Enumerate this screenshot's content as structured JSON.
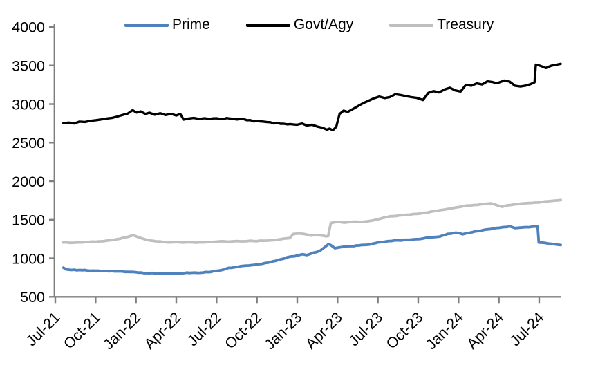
{
  "chart_data": {
    "type": "line",
    "title": "",
    "grid": false,
    "axis_color": "#7F7F7F",
    "text_color": "#000000",
    "x_axis": {
      "tick_labels": [
        "Jul-21",
        "Oct-21",
        "Jan-22",
        "Apr-22",
        "Jul-22",
        "Oct-22",
        "Jan-23",
        "Apr-23",
        "Jul-23",
        "Oct-23",
        "Jan-24",
        "Apr-24",
        "Jul-24"
      ],
      "tick_interval_months": 3,
      "label_rotation_deg": -45
    },
    "y_axis": {
      "min": 500,
      "max": 4000,
      "tick_step": 500,
      "tick_labels": [
        "500",
        "1000",
        "1500",
        "2000",
        "2500",
        "3000",
        "3500",
        "4000"
      ]
    },
    "legend": {
      "position": "top"
    },
    "series": [
      {
        "name": "Prime",
        "color": "#4F81BD",
        "width": 3.8,
        "jitter": 5,
        "points": [
          [
            0.6,
            878
          ],
          [
            0.8,
            856
          ],
          [
            1.2,
            848
          ],
          [
            2,
            845
          ],
          [
            2.8,
            840
          ],
          [
            3.6,
            836
          ],
          [
            4.4,
            830
          ],
          [
            5.2,
            824
          ],
          [
            6,
            818
          ],
          [
            6.8,
            808
          ],
          [
            7.6,
            804
          ],
          [
            8.4,
            803
          ],
          [
            9.2,
            806
          ],
          [
            10,
            810
          ],
          [
            10.8,
            812
          ],
          [
            11.6,
            824
          ],
          [
            12.2,
            842
          ],
          [
            12.9,
            876
          ],
          [
            13.6,
            890
          ],
          [
            14.4,
            906
          ],
          [
            15.2,
            925
          ],
          [
            16,
            950
          ],
          [
            16.8,
            988
          ],
          [
            17.4,
            1018
          ],
          [
            18,
            1036
          ],
          [
            18.4,
            1052
          ],
          [
            18.7,
            1042
          ],
          [
            19.2,
            1072
          ],
          [
            19.7,
            1098
          ],
          [
            20.1,
            1152
          ],
          [
            20.35,
            1186
          ],
          [
            20.6,
            1158
          ],
          [
            20.8,
            1130
          ],
          [
            21.1,
            1140
          ],
          [
            21.5,
            1150
          ],
          [
            22,
            1158
          ],
          [
            22.6,
            1166
          ],
          [
            23.2,
            1175
          ],
          [
            23.8,
            1196
          ],
          [
            24.4,
            1212
          ],
          [
            25,
            1224
          ],
          [
            25.6,
            1232
          ],
          [
            26.2,
            1240
          ],
          [
            26.8,
            1248
          ],
          [
            27.4,
            1258
          ],
          [
            28,
            1270
          ],
          [
            28.6,
            1282
          ],
          [
            29.2,
            1318
          ],
          [
            29.8,
            1332
          ],
          [
            30.3,
            1312
          ],
          [
            30.8,
            1330
          ],
          [
            31.4,
            1352
          ],
          [
            32,
            1372
          ],
          [
            32.6,
            1388
          ],
          [
            33.2,
            1400
          ],
          [
            33.8,
            1415
          ],
          [
            34.2,
            1392
          ],
          [
            34.6,
            1398
          ],
          [
            35,
            1404
          ],
          [
            35.5,
            1410
          ],
          [
            35.88,
            1413
          ],
          [
            35.97,
            1205
          ],
          [
            36.4,
            1200
          ],
          [
            36.9,
            1188
          ],
          [
            37.3,
            1178
          ],
          [
            37.6,
            1172
          ]
        ]
      },
      {
        "name": "Govt/Agy",
        "color": "#000000",
        "width": 3.4,
        "jitter": 12,
        "points": [
          [
            0.6,
            2752
          ],
          [
            1,
            2760
          ],
          [
            1.4,
            2748
          ],
          [
            1.8,
            2772
          ],
          [
            2.2,
            2768
          ],
          [
            2.6,
            2782
          ],
          [
            3,
            2790
          ],
          [
            3.4,
            2800
          ],
          [
            3.8,
            2812
          ],
          [
            4.2,
            2820
          ],
          [
            4.6,
            2838
          ],
          [
            5,
            2858
          ],
          [
            5.4,
            2878
          ],
          [
            5.75,
            2920
          ],
          [
            6.05,
            2890
          ],
          [
            6.35,
            2905
          ],
          [
            6.7,
            2872
          ],
          [
            7,
            2888
          ],
          [
            7.4,
            2862
          ],
          [
            7.8,
            2882
          ],
          [
            8.2,
            2858
          ],
          [
            8.6,
            2874
          ],
          [
            9,
            2852
          ],
          [
            9.3,
            2872
          ],
          [
            9.55,
            2798
          ],
          [
            9.9,
            2812
          ],
          [
            10.3,
            2820
          ],
          [
            10.7,
            2806
          ],
          [
            11.1,
            2816
          ],
          [
            11.5,
            2806
          ],
          [
            12,
            2815
          ],
          [
            12.5,
            2805
          ],
          [
            13,
            2812
          ],
          [
            13.5,
            2800
          ],
          [
            14,
            2806
          ],
          [
            14.5,
            2792
          ],
          [
            15,
            2780
          ],
          [
            15.5,
            2772
          ],
          [
            16,
            2764
          ],
          [
            16.5,
            2755
          ],
          [
            17,
            2745
          ],
          [
            17.5,
            2740
          ],
          [
            18,
            2732
          ],
          [
            18.35,
            2748
          ],
          [
            18.7,
            2722
          ],
          [
            19.1,
            2732
          ],
          [
            19.5,
            2708
          ],
          [
            19.9,
            2692
          ],
          [
            20.2,
            2668
          ],
          [
            20.4,
            2682
          ],
          [
            20.65,
            2660
          ],
          [
            20.9,
            2705
          ],
          [
            21.15,
            2872
          ],
          [
            21.45,
            2915
          ],
          [
            21.75,
            2898
          ],
          [
            22.1,
            2932
          ],
          [
            22.5,
            2972
          ],
          [
            22.9,
            3012
          ],
          [
            23.3,
            3042
          ],
          [
            23.7,
            3075
          ],
          [
            24.1,
            3098
          ],
          [
            24.5,
            3078
          ],
          [
            24.9,
            3092
          ],
          [
            25.3,
            3128
          ],
          [
            25.7,
            3118
          ],
          [
            26.1,
            3102
          ],
          [
            26.5,
            3090
          ],
          [
            26.9,
            3080
          ],
          [
            27.35,
            3052
          ],
          [
            27.75,
            3145
          ],
          [
            28.15,
            3168
          ],
          [
            28.55,
            3152
          ],
          [
            28.95,
            3188
          ],
          [
            29.35,
            3212
          ],
          [
            29.75,
            3178
          ],
          [
            30.15,
            3162
          ],
          [
            30.55,
            3250
          ],
          [
            30.95,
            3238
          ],
          [
            31.35,
            3268
          ],
          [
            31.75,
            3255
          ],
          [
            32.15,
            3295
          ],
          [
            32.55,
            3285
          ],
          [
            33,
            3280
          ],
          [
            33.4,
            3305
          ],
          [
            33.8,
            3292
          ],
          [
            34.2,
            3238
          ],
          [
            34.6,
            3228
          ],
          [
            35,
            3240
          ],
          [
            35.35,
            3258
          ],
          [
            35.65,
            3282
          ],
          [
            35.75,
            3512
          ],
          [
            36.1,
            3495
          ],
          [
            36.5,
            3468
          ],
          [
            36.9,
            3498
          ],
          [
            37.2,
            3508
          ],
          [
            37.6,
            3522
          ]
        ]
      },
      {
        "name": "Treasury",
        "color": "#BFBFBF",
        "width": 3.8,
        "jitter": 4,
        "points": [
          [
            0.6,
            1205
          ],
          [
            1.2,
            1200
          ],
          [
            1.8,
            1206
          ],
          [
            2.4,
            1210
          ],
          [
            3,
            1214
          ],
          [
            3.6,
            1222
          ],
          [
            4.2,
            1236
          ],
          [
            4.8,
            1252
          ],
          [
            5.4,
            1278
          ],
          [
            5.8,
            1300
          ],
          [
            6.2,
            1272
          ],
          [
            6.6,
            1250
          ],
          [
            7,
            1232
          ],
          [
            7.5,
            1220
          ],
          [
            8,
            1212
          ],
          [
            8.5,
            1206
          ],
          [
            9,
            1210
          ],
          [
            9.5,
            1204
          ],
          [
            10,
            1208
          ],
          [
            10.5,
            1202
          ],
          [
            11,
            1207
          ],
          [
            11.5,
            1212
          ],
          [
            12,
            1216
          ],
          [
            12.5,
            1221
          ],
          [
            13,
            1217
          ],
          [
            13.5,
            1224
          ],
          [
            14,
            1220
          ],
          [
            14.5,
            1227
          ],
          [
            15,
            1222
          ],
          [
            15.5,
            1228
          ],
          [
            16,
            1233
          ],
          [
            16.5,
            1240
          ],
          [
            17,
            1255
          ],
          [
            17.45,
            1262
          ],
          [
            17.7,
            1315
          ],
          [
            18.1,
            1322
          ],
          [
            18.5,
            1316
          ],
          [
            19,
            1295
          ],
          [
            19.4,
            1302
          ],
          [
            19.8,
            1296
          ],
          [
            20.15,
            1285
          ],
          [
            20.3,
            1288
          ],
          [
            20.5,
            1458
          ],
          [
            20.8,
            1468
          ],
          [
            21.1,
            1472
          ],
          [
            21.5,
            1462
          ],
          [
            21.9,
            1470
          ],
          [
            22.3,
            1476
          ],
          [
            22.7,
            1470
          ],
          [
            23.1,
            1477
          ],
          [
            23.5,
            1486
          ],
          [
            23.9,
            1502
          ],
          [
            24.4,
            1525
          ],
          [
            24.9,
            1545
          ],
          [
            25.4,
            1550
          ],
          [
            25.9,
            1560
          ],
          [
            26.4,
            1566
          ],
          [
            26.9,
            1576
          ],
          [
            27.4,
            1590
          ],
          [
            27.9,
            1602
          ],
          [
            28.4,
            1616
          ],
          [
            28.9,
            1630
          ],
          [
            29.4,
            1645
          ],
          [
            29.9,
            1662
          ],
          [
            30.4,
            1678
          ],
          [
            30.9,
            1684
          ],
          [
            31.4,
            1692
          ],
          [
            31.9,
            1705
          ],
          [
            32.4,
            1712
          ],
          [
            32.9,
            1685
          ],
          [
            33.25,
            1668
          ],
          [
            33.7,
            1687
          ],
          [
            34.2,
            1700
          ],
          [
            34.7,
            1710
          ],
          [
            35.2,
            1716
          ],
          [
            35.7,
            1722
          ],
          [
            36.2,
            1730
          ],
          [
            36.7,
            1740
          ],
          [
            37.15,
            1748
          ],
          [
            37.6,
            1756
          ]
        ]
      }
    ]
  }
}
